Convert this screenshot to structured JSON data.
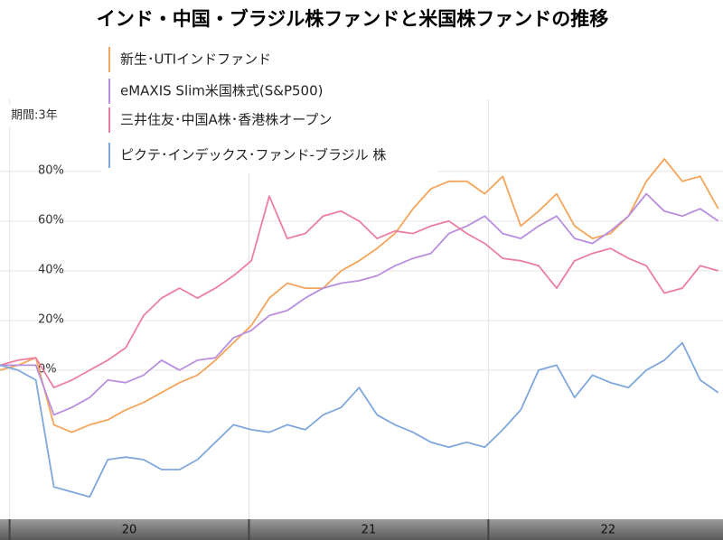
{
  "chart_data": {
    "type": "line",
    "title": "インド・中国・ブラジル株ファンドと米国株ファンドの推移",
    "annotation": "期間:3年",
    "x": [
      2019.96,
      2020.035,
      2020.11,
      2020.185,
      2020.26,
      2020.335,
      2020.41,
      2020.485,
      2020.56,
      2020.635,
      2020.71,
      2020.785,
      2020.86,
      2020.935,
      2021.01,
      2021.085,
      2021.16,
      2021.235,
      2021.31,
      2021.385,
      2021.46,
      2021.535,
      2021.61,
      2021.685,
      2021.76,
      2021.835,
      2021.91,
      2021.985,
      2022.06,
      2022.135,
      2022.21,
      2022.285,
      2022.36,
      2022.435,
      2022.51,
      2022.585,
      2022.66,
      2022.735,
      2022.81,
      2022.885,
      2022.96
    ],
    "xlim": [
      2019.96,
      2022.98
    ],
    "xticks": [
      {
        "value": 2020.5,
        "label": "20"
      },
      {
        "value": 2021.5,
        "label": "21"
      },
      {
        "value": 2022.5,
        "label": "22"
      }
    ],
    "xgrid": [
      2020,
      2021,
      2022
    ],
    "ylim": [
      -60,
      109
    ],
    "yticks": [
      {
        "value": 0,
        "label": "0%"
      },
      {
        "value": 20,
        "label": "20%"
      },
      {
        "value": 40,
        "label": "40%"
      },
      {
        "value": 60,
        "label": "60%"
      },
      {
        "value": 80,
        "label": "80%"
      }
    ],
    "grid": true,
    "series": [
      {
        "name": "新生･UTIインドファンド",
        "color": "#f4a55a",
        "values": [
          0,
          2,
          5,
          -22,
          -25,
          -22,
          -20,
          -16,
          -13,
          -9,
          -5,
          -2,
          4,
          11,
          18,
          29,
          35,
          33,
          33,
          40,
          44,
          49,
          55,
          65,
          73,
          76,
          76,
          71,
          78,
          58,
          64,
          71,
          58,
          53,
          55,
          62,
          76,
          85,
          76,
          78,
          65
        ]
      },
      {
        "name": "eMAXIS Slim米国株式(S&P500)",
        "color": "#b98ee0",
        "values": [
          2,
          2,
          2,
          -18,
          -15,
          -11,
          -4,
          -5,
          -2,
          4,
          0,
          4,
          5,
          13,
          16,
          22,
          24,
          29,
          33,
          35,
          36,
          38,
          42,
          45,
          47,
          55,
          58,
          62,
          55,
          53,
          58,
          62,
          53,
          51,
          56,
          62,
          71,
          64,
          62,
          65,
          60
        ]
      },
      {
        "name": "三井住友･中国A株･香港株オープン",
        "color": "#ec7fa0",
        "values": [
          2,
          4,
          5,
          -7,
          -4,
          0,
          4,
          9,
          22,
          29,
          33,
          29,
          33,
          38,
          44,
          70,
          53,
          55,
          62,
          64,
          60,
          53,
          56,
          55,
          58,
          60,
          55,
          51,
          45,
          44,
          42,
          33,
          44,
          47,
          49,
          45,
          42,
          31,
          33,
          42,
          40
        ]
      },
      {
        "name": "ピクテ･インデックス･ファンド-ブラジル 株",
        "color": "#7fa7de",
        "values": [
          2,
          0,
          -4,
          -47,
          -49,
          -51,
          -36,
          -35,
          -36,
          -40,
          -40,
          -36,
          -29,
          -22,
          -24,
          -25,
          -22,
          -24,
          -18,
          -15,
          -7,
          -18,
          -22,
          -25,
          -29,
          -31,
          -29,
          -31,
          -24,
          -16,
          0,
          2,
          -11,
          -2,
          -5,
          -7,
          0,
          4,
          11,
          -4,
          -9
        ]
      }
    ]
  }
}
